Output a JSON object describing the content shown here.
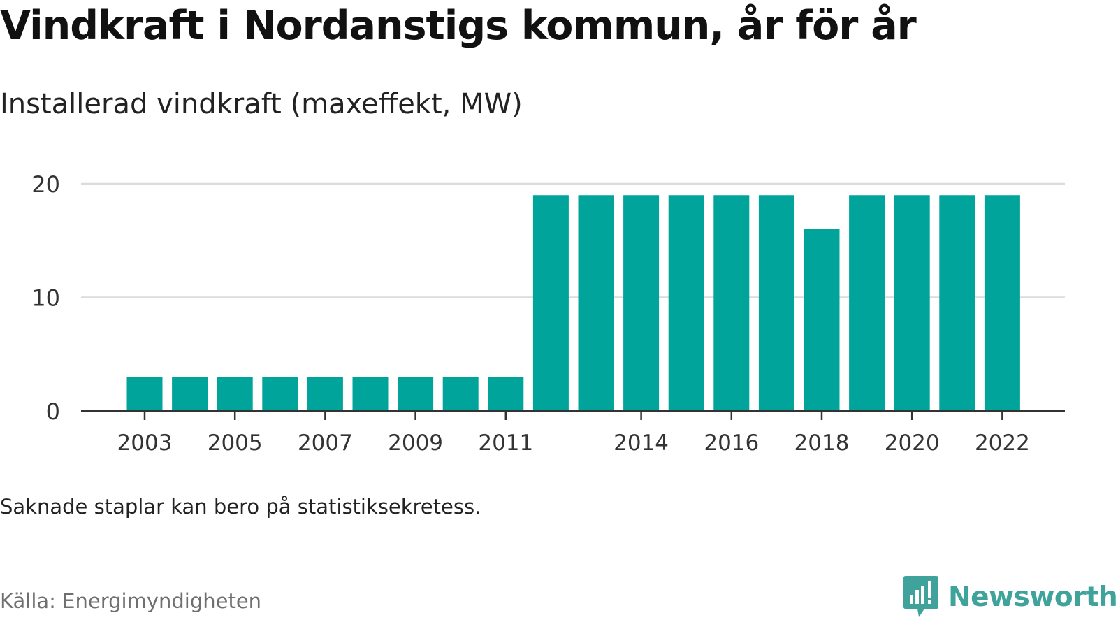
{
  "title": "Vindkraft i Nordanstigs kommun, år för år",
  "subtitle": "Installerad vindkraft (maxeffekt, MW)",
  "note": "Saknade staplar kan bero på statistiksekretess.",
  "source": "Källa: Energimyndigheten",
  "brand": {
    "name": "Newsworthy",
    "logo_icon": "bar-chart-speech-bubble-icon"
  },
  "colors": {
    "bar": "#00a49b",
    "grid": "#dcdcdc",
    "axis": "#333333",
    "brand": "#3fa39c"
  },
  "chart_data": {
    "type": "bar",
    "categories": [
      "2003",
      "2004",
      "2005",
      "2006",
      "2007",
      "2008",
      "2009",
      "2010",
      "2011",
      "2012",
      "2013",
      "2014",
      "2015",
      "2016",
      "2017",
      "2018",
      "2019",
      "2020",
      "2021",
      "2022"
    ],
    "values": [
      3,
      3,
      3,
      3,
      3,
      3,
      3,
      3,
      3,
      19,
      19,
      19,
      19,
      19,
      19,
      16,
      19,
      19,
      19,
      19
    ],
    "x_tick_labels": [
      "2003",
      "2005",
      "2007",
      "2009",
      "2011",
      "2014",
      "2016",
      "2018",
      "2020",
      "2022"
    ],
    "y_ticks": [
      0,
      10,
      20
    ],
    "ylim": [
      0,
      20
    ],
    "grid": true,
    "title": "Vindkraft i Nordanstigs kommun, år för år",
    "xlabel": "",
    "ylabel": "Installerad vindkraft (maxeffekt, MW)"
  }
}
